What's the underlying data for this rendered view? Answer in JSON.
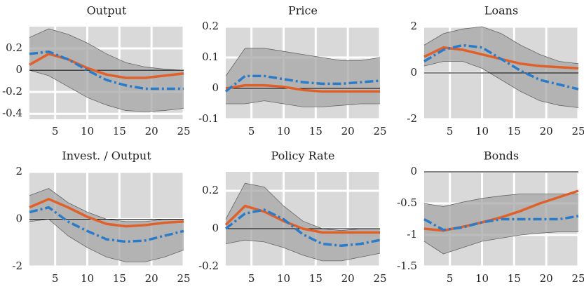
{
  "chart_data": [
    {
      "type": "line",
      "title": "Output",
      "x": [
        1,
        4,
        7,
        10,
        13,
        16,
        19,
        22,
        25
      ],
      "xlim": [
        1,
        25
      ],
      "xticks": [
        5,
        10,
        15,
        20,
        25
      ],
      "ylim": [
        -0.45,
        0.4
      ],
      "yticks": [
        -0.4,
        -0.2,
        0,
        0.2
      ],
      "grid": true,
      "band": {
        "color": "#a6a6a6",
        "upper": [
          0.3,
          0.38,
          0.33,
          0.25,
          0.15,
          0.07,
          0.03,
          0.01,
          0.0
        ],
        "lower": [
          0.0,
          -0.05,
          -0.15,
          -0.25,
          -0.32,
          -0.37,
          -0.38,
          -0.37,
          -0.35
        ]
      },
      "series": [
        {
          "color": "#e0602a",
          "style": "solid",
          "values": [
            0.05,
            0.15,
            0.1,
            0.02,
            -0.04,
            -0.07,
            -0.07,
            -0.05,
            -0.03
          ]
        },
        {
          "color": "#2a7bc8",
          "style": "dashdot",
          "values": [
            0.15,
            0.17,
            0.1,
            0.0,
            -0.09,
            -0.14,
            -0.17,
            -0.17,
            -0.17
          ]
        }
      ]
    },
    {
      "type": "line",
      "title": "Price",
      "x": [
        1,
        4,
        7,
        10,
        13,
        16,
        19,
        22,
        25
      ],
      "xlim": [
        1,
        25
      ],
      "xticks": [
        5,
        10,
        15,
        20,
        25
      ],
      "ylim": [
        -0.1,
        0.2
      ],
      "yticks": [
        -0.1,
        0,
        0.1,
        0.2
      ],
      "grid": true,
      "band": {
        "color": "#a6a6a6",
        "upper": [
          0.04,
          0.13,
          0.13,
          0.12,
          0.11,
          0.1,
          0.09,
          0.09,
          0.1
        ],
        "lower": [
          -0.05,
          -0.05,
          -0.04,
          -0.05,
          -0.06,
          -0.06,
          -0.055,
          -0.05,
          -0.05
        ]
      },
      "series": [
        {
          "color": "#e0602a",
          "style": "solid",
          "values": [
            0,
            0.01,
            0.01,
            0.005,
            -0.005,
            -0.01,
            -0.01,
            -0.01,
            -0.01
          ]
        },
        {
          "color": "#2a7bc8",
          "style": "dashdot",
          "values": [
            -0.01,
            0.04,
            0.04,
            0.03,
            0.02,
            0.015,
            0.015,
            0.02,
            0.025
          ]
        }
      ]
    },
    {
      "type": "line",
      "title": "Loans",
      "x": [
        1,
        4,
        7,
        10,
        13,
        16,
        19,
        22,
        25
      ],
      "xlim": [
        1,
        25
      ],
      "xticks": [
        5,
        10,
        15,
        20,
        25
      ],
      "ylim": [
        -2,
        2
      ],
      "yticks": [
        -2,
        0,
        2
      ],
      "grid": true,
      "band": {
        "color": "#a6a6a6",
        "upper": [
          1.2,
          1.7,
          1.9,
          2.0,
          1.7,
          1.2,
          0.8,
          0.5,
          0.4
        ],
        "lower": [
          0.3,
          0.5,
          0.5,
          0.2,
          -0.3,
          -0.8,
          -1.2,
          -1.4,
          -1.5
        ]
      },
      "series": [
        {
          "color": "#e0602a",
          "style": "solid",
          "values": [
            0.7,
            1.1,
            1.0,
            0.8,
            0.6,
            0.4,
            0.3,
            0.25,
            0.2
          ]
        },
        {
          "color": "#2a7bc8",
          "style": "dashdot",
          "values": [
            0.5,
            1.0,
            1.2,
            1.1,
            0.6,
            0.1,
            -0.3,
            -0.5,
            -0.7
          ]
        }
      ]
    },
    {
      "type": "line",
      "title": "Invest. / Output",
      "x": [
        1,
        4,
        7,
        10,
        13,
        16,
        19,
        22,
        25
      ],
      "xlim": [
        1,
        25
      ],
      "xticks": [
        5,
        10,
        15,
        20,
        25
      ],
      "ylim": [
        -2,
        2
      ],
      "yticks": [
        -2,
        0,
        2
      ],
      "grid": true,
      "band": {
        "color": "#a6a6a6",
        "upper": [
          1.0,
          1.3,
          0.7,
          0.3,
          0.0,
          -0.1,
          -0.1,
          0,
          0
        ],
        "lower": [
          -0.1,
          0.0,
          -0.7,
          -1.2,
          -1.6,
          -1.8,
          -1.8,
          -1.6,
          -1.3
        ]
      },
      "series": [
        {
          "color": "#e0602a",
          "style": "solid",
          "values": [
            0.5,
            0.85,
            0.5,
            0.1,
            -0.2,
            -0.3,
            -0.25,
            -0.15,
            -0.1
          ]
        },
        {
          "color": "#2a7bc8",
          "style": "dashdot",
          "values": [
            0.3,
            0.5,
            -0.1,
            -0.5,
            -0.85,
            -0.95,
            -0.9,
            -0.7,
            -0.5
          ]
        }
      ]
    },
    {
      "type": "line",
      "title": "Policy Rate",
      "x": [
        1,
        4,
        7,
        10,
        13,
        16,
        19,
        22,
        25
      ],
      "xlim": [
        1,
        25
      ],
      "xticks": [
        5,
        10,
        15,
        20,
        25
      ],
      "ylim": [
        -0.2,
        0.3
      ],
      "yticks": [
        -0.2,
        0,
        0.2
      ],
      "grid": true,
      "band": {
        "color": "#a6a6a6",
        "upper": [
          0.05,
          0.24,
          0.22,
          0.12,
          0.04,
          0.0,
          -0.01,
          0,
          0
        ],
        "lower": [
          -0.08,
          -0.06,
          -0.07,
          -0.1,
          -0.14,
          -0.17,
          -0.17,
          -0.15,
          -0.13
        ]
      },
      "series": [
        {
          "color": "#e0602a",
          "style": "solid",
          "values": [
            0.02,
            0.12,
            0.09,
            0.04,
            0.0,
            -0.02,
            -0.02,
            -0.02,
            -0.02
          ]
        },
        {
          "color": "#2a7bc8",
          "style": "dashdot",
          "values": [
            0,
            0.08,
            0.1,
            0.05,
            -0.03,
            -0.08,
            -0.09,
            -0.08,
            -0.06
          ]
        }
      ]
    },
    {
      "type": "line",
      "title": "Bonds",
      "x": [
        1,
        4,
        7,
        10,
        13,
        16,
        19,
        22,
        25
      ],
      "xlim": [
        1,
        25
      ],
      "xticks": [
        5,
        10,
        15,
        20,
        25
      ],
      "ylim": [
        -1.5,
        0
      ],
      "yticks": [
        -1.5,
        -1,
        -0.5,
        0
      ],
      "grid": true,
      "band": {
        "color": "#a6a6a6",
        "upper": [
          -0.5,
          -0.55,
          -0.48,
          -0.42,
          -0.38,
          -0.35,
          -0.35,
          -0.35,
          -0.35
        ],
        "lower": [
          -1.1,
          -1.3,
          -1.2,
          -1.1,
          -1.05,
          -1.0,
          -0.97,
          -0.95,
          -0.95
        ]
      },
      "series": [
        {
          "color": "#e0602a",
          "style": "solid",
          "values": [
            -0.9,
            -0.93,
            -0.87,
            -0.8,
            -0.72,
            -0.62,
            -0.5,
            -0.4,
            -0.3
          ]
        },
        {
          "color": "#2a7bc8",
          "style": "dashdot",
          "values": [
            -0.75,
            -0.92,
            -0.88,
            -0.8,
            -0.75,
            -0.75,
            -0.75,
            -0.75,
            -0.7
          ]
        }
      ]
    }
  ]
}
